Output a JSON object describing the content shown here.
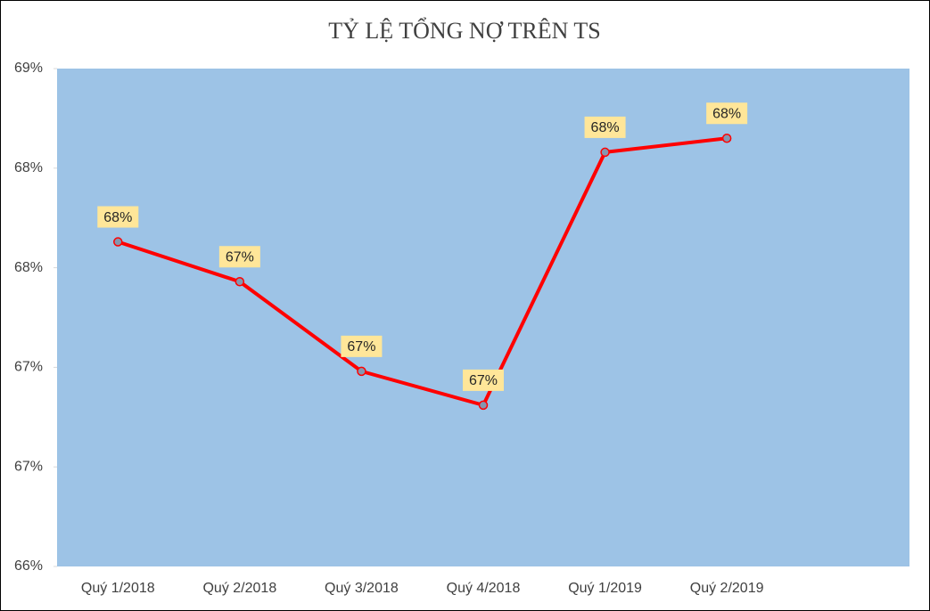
{
  "chart_data": {
    "type": "line",
    "title": "TỶ LỆ TỔNG NỢ TRÊN TS",
    "categories": [
      "Quý 1/2018",
      "Quý 2/2018",
      "Quý 3/2018",
      "Quý 4/2018",
      "Quý 1/2019",
      "Quý 2/2019",
      null
    ],
    "values": [
      67.63,
      67.43,
      66.98,
      66.81,
      68.08,
      68.15,
      null
    ],
    "value_labels": [
      "68%",
      "67%",
      "67%",
      "67%",
      "68%",
      "68%",
      null
    ],
    "color": "#ff0000",
    "marker_color": "#8497b0",
    "label_background": "#ffe699",
    "plot_background": "#9dc3e6",
    "ylim": [
      66,
      68.5
    ],
    "yticks": [
      {
        "value": 66,
        "label": "66%"
      },
      {
        "value": 66.5,
        "label": "67%"
      },
      {
        "value": 67,
        "label": "67%"
      },
      {
        "value": 67.5,
        "label": "68%"
      },
      {
        "value": 68,
        "label": "68%"
      },
      {
        "value": 68.5,
        "label": "69%"
      }
    ]
  }
}
